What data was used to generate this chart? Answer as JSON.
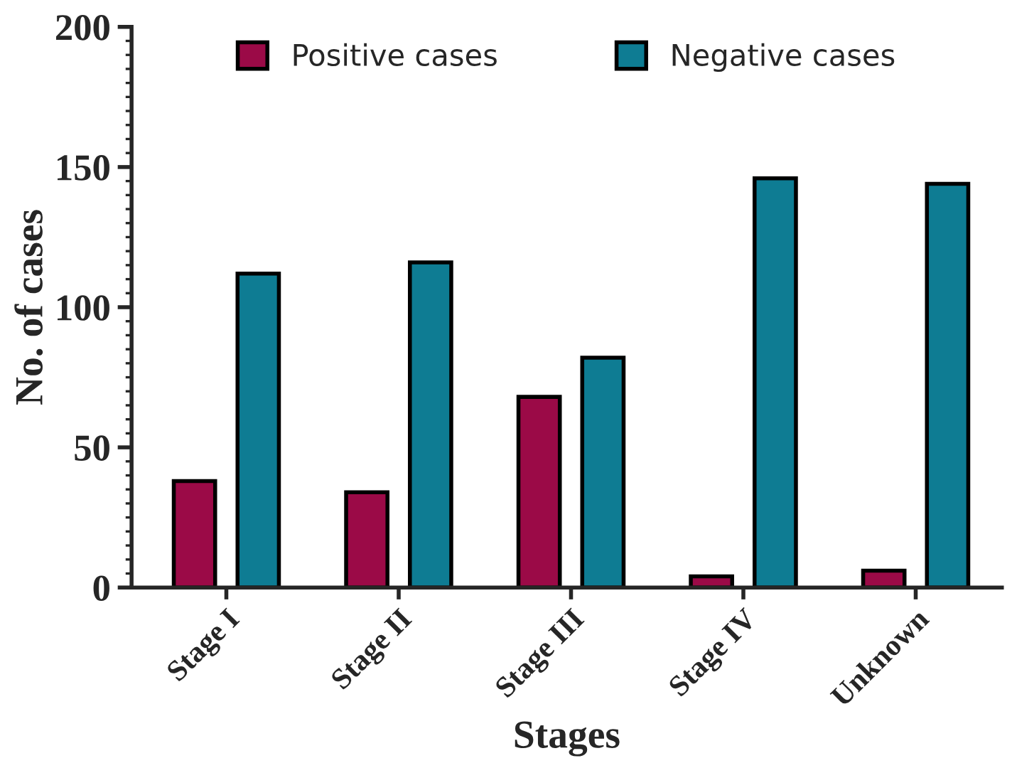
{
  "chart_data": {
    "type": "bar",
    "xlabel": "Stages",
    "ylabel": "No. of cases",
    "categories": [
      "Stage I",
      "Stage II",
      "Stage III",
      "Stage IV",
      "Unknown"
    ],
    "series": [
      {
        "name": "Positive cases",
        "color": "#9b0a47",
        "values": [
          38,
          34,
          68,
          4,
          6
        ]
      },
      {
        "name": "Negative cases",
        "color": "#0e7c93",
        "values": [
          112,
          116,
          82,
          146,
          144
        ]
      }
    ],
    "ylim": [
      0,
      200
    ],
    "yticks": [
      0,
      50,
      100,
      150,
      200
    ],
    "grid": false,
    "legend": "top"
  }
}
